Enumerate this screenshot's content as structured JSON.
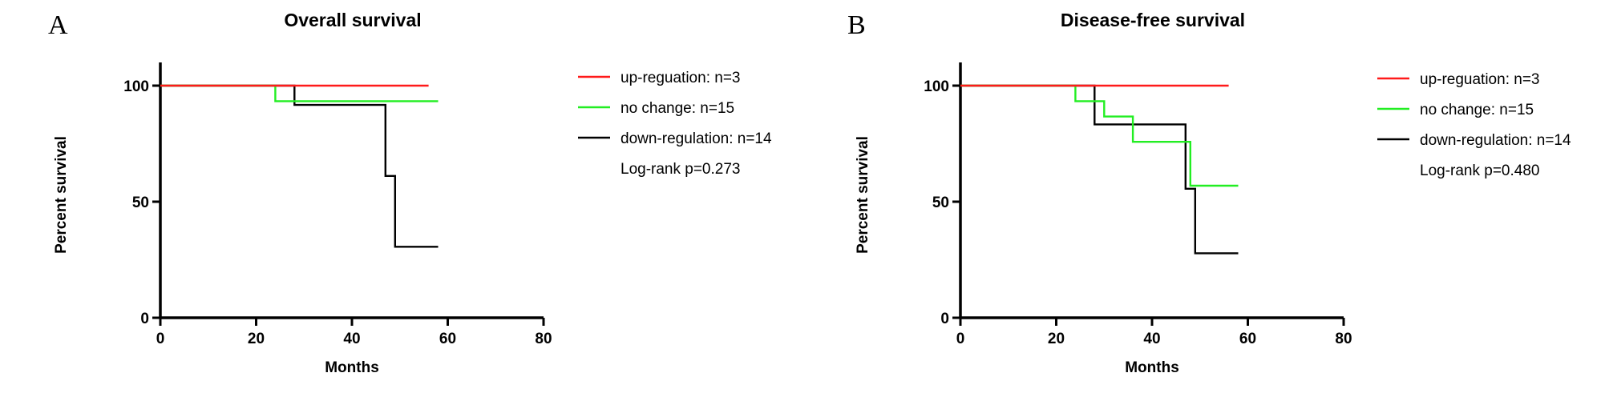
{
  "colors": {
    "up": "#ff1a1a",
    "no_change": "#22ee22",
    "down": "#000000"
  },
  "chart_data": [
    {
      "panel": "A",
      "type": "line",
      "step": true,
      "title": "Overall survival",
      "xlabel": "Months",
      "ylabel": "Percent survival",
      "xlim": [
        0,
        80
      ],
      "ylim": [
        0,
        110
      ],
      "xticks": [
        0,
        20,
        40,
        60,
        80
      ],
      "yticks": [
        0,
        50,
        100
      ],
      "grid": false,
      "legend_position": "right",
      "annotation": "Log-rank p=0.273",
      "series": [
        {
          "name": "up-reguation: n=3",
          "color_key": "up",
          "points": [
            [
              0,
              100
            ],
            [
              56,
              100
            ]
          ]
        },
        {
          "name": "no change: n=15",
          "color_key": "no_change",
          "points": [
            [
              0,
              100
            ],
            [
              24,
              100
            ],
            [
              24,
              93.3
            ],
            [
              58,
              93.3
            ]
          ]
        },
        {
          "name": "down-regulation: n=14",
          "color_key": "down",
          "points": [
            [
              0,
              100
            ],
            [
              28,
              100
            ],
            [
              28,
              91.7
            ],
            [
              47,
              91.7
            ],
            [
              47,
              61.1
            ],
            [
              49,
              61.1
            ],
            [
              49,
              30.6
            ],
            [
              58,
              30.6
            ]
          ]
        }
      ]
    },
    {
      "panel": "B",
      "type": "line",
      "step": true,
      "title": "Disease-free survival",
      "xlabel": "Months",
      "ylabel": "Percent survival",
      "xlim": [
        0,
        80
      ],
      "ylim": [
        0,
        110
      ],
      "xticks": [
        0,
        20,
        40,
        60,
        80
      ],
      "yticks": [
        0,
        50,
        100
      ],
      "grid": false,
      "legend_position": "right",
      "annotation": "Log-rank p=0.480",
      "series": [
        {
          "name": "up-reguation: n=3",
          "color_key": "up",
          "points": [
            [
              0,
              100
            ],
            [
              56,
              100
            ]
          ]
        },
        {
          "name": "no change: n=15",
          "color_key": "no_change",
          "points": [
            [
              0,
              100
            ],
            [
              24,
              100
            ],
            [
              24,
              93.3
            ],
            [
              30,
              93.3
            ],
            [
              30,
              86.7
            ],
            [
              36,
              86.7
            ],
            [
              36,
              75.8
            ],
            [
              48,
              75.8
            ],
            [
              48,
              56.9
            ],
            [
              58,
              56.9
            ]
          ]
        },
        {
          "name": "down-regulation: n=14",
          "color_key": "down",
          "points": [
            [
              0,
              100
            ],
            [
              28,
              100
            ],
            [
              28,
              83.3
            ],
            [
              47,
              83.3
            ],
            [
              47,
              55.6
            ],
            [
              49,
              55.6
            ],
            [
              49,
              27.8
            ],
            [
              58,
              27.8
            ]
          ]
        }
      ]
    }
  ]
}
